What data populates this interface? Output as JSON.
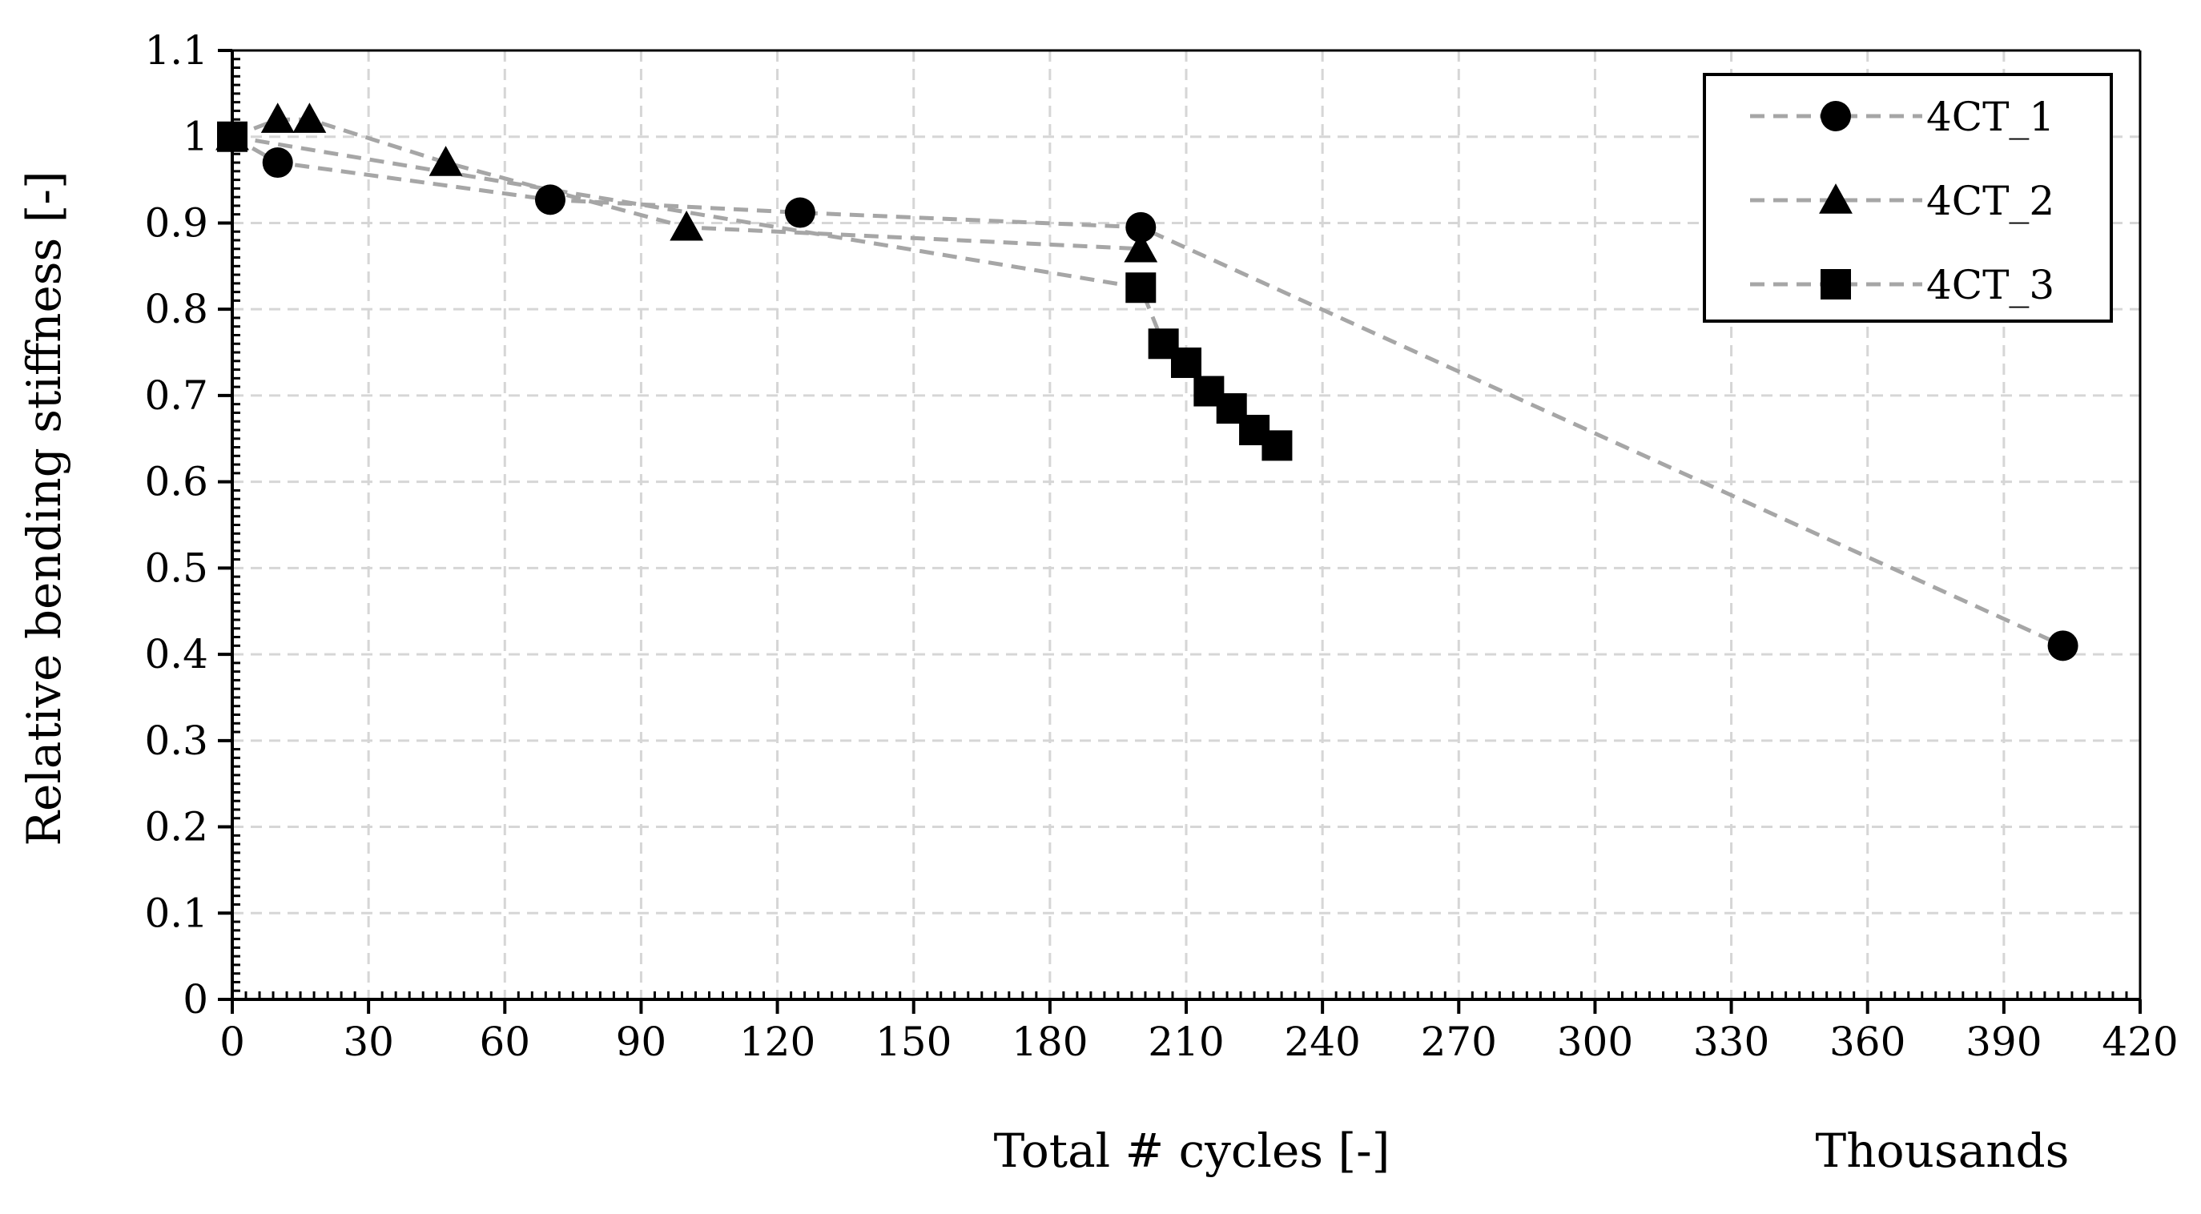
{
  "chart_data": {
    "type": "line",
    "xlabel": "Total # cycles [-]",
    "xunit_label": "Thousands",
    "ylabel": "Relative bending stiffness [-]",
    "xlim": [
      0,
      420
    ],
    "ylim": [
      0,
      1.1
    ],
    "x_major_step": 30,
    "y_major_step": 0.1,
    "x_tick_labels": [
      "0",
      "30",
      "60",
      "90",
      "120",
      "150",
      "180",
      "210",
      "240",
      "270",
      "300",
      "330",
      "360",
      "390",
      "420"
    ],
    "y_tick_labels": [
      "0",
      "0.1",
      "0.2",
      "0.3",
      "0.4",
      "0.5",
      "0.6",
      "0.7",
      "0.8",
      "0.9",
      "1",
      "1.1"
    ],
    "grid": true,
    "legend_position": "top-right",
    "line_color": "#a6a6a6",
    "marker_color": "#000000",
    "series": [
      {
        "name": "4CT_1",
        "marker": "circle",
        "x": [
          0,
          10,
          70,
          125,
          200,
          403
        ],
        "y": [
          1.0,
          0.97,
          0.927,
          0.912,
          0.895,
          0.41
        ]
      },
      {
        "name": "4CT_2",
        "marker": "triangle",
        "x": [
          0,
          10,
          17,
          47,
          100,
          200
        ],
        "y": [
          1.0,
          1.02,
          1.02,
          0.97,
          0.895,
          0.87
        ]
      },
      {
        "name": "4CT_3",
        "marker": "square",
        "x": [
          0,
          200,
          205,
          210,
          215,
          220,
          225,
          230
        ],
        "y": [
          1.0,
          0.825,
          0.76,
          0.738,
          0.705,
          0.685,
          0.66,
          0.642
        ]
      }
    ]
  }
}
